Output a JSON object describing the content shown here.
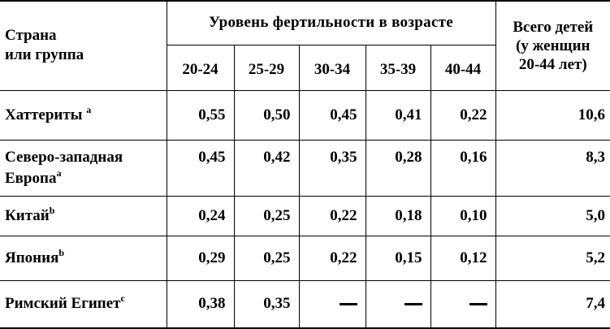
{
  "table": {
    "header": {
      "country_line1": "Страна",
      "country_line2": "или группа",
      "group_label": "Уровень фертильности в возрасте",
      "age_groups": [
        "20-24",
        "25-29",
        "30-34",
        "35-39",
        "40-44"
      ],
      "total_line1": "Всего детей",
      "total_line2": "(у женщин",
      "total_line3": "20-44 лет)"
    },
    "rows": [
      {
        "country_line1": "Хаттериты ",
        "country_line2": "",
        "note": "a",
        "values": [
          "0,55",
          "0,50",
          "0,45",
          "0,41",
          "0,22"
        ],
        "total": "10,6"
      },
      {
        "country_line1": "Северо-западная",
        "country_line2": "Европа",
        "note": "a",
        "values": [
          "0,45",
          "0,42",
          "0,35",
          "0,28",
          "0,16"
        ],
        "total": "8,3"
      },
      {
        "country_line1": "Китай",
        "country_line2": "",
        "note": "b",
        "values": [
          "0,24",
          "0,25",
          "0,22",
          "0,18",
          "0,10"
        ],
        "total": "5,0"
      },
      {
        "country_line1": "Япония",
        "country_line2": "",
        "note": "b",
        "values": [
          "0,29",
          "0,25",
          "0,22",
          "0,15",
          "0,12"
        ],
        "total": "5,2"
      },
      {
        "country_line1": "Римский Египет",
        "country_line2": "",
        "note": "c",
        "values": [
          "0,38",
          "0,35",
          "",
          "",
          ""
        ],
        "total": "7,4"
      }
    ]
  }
}
